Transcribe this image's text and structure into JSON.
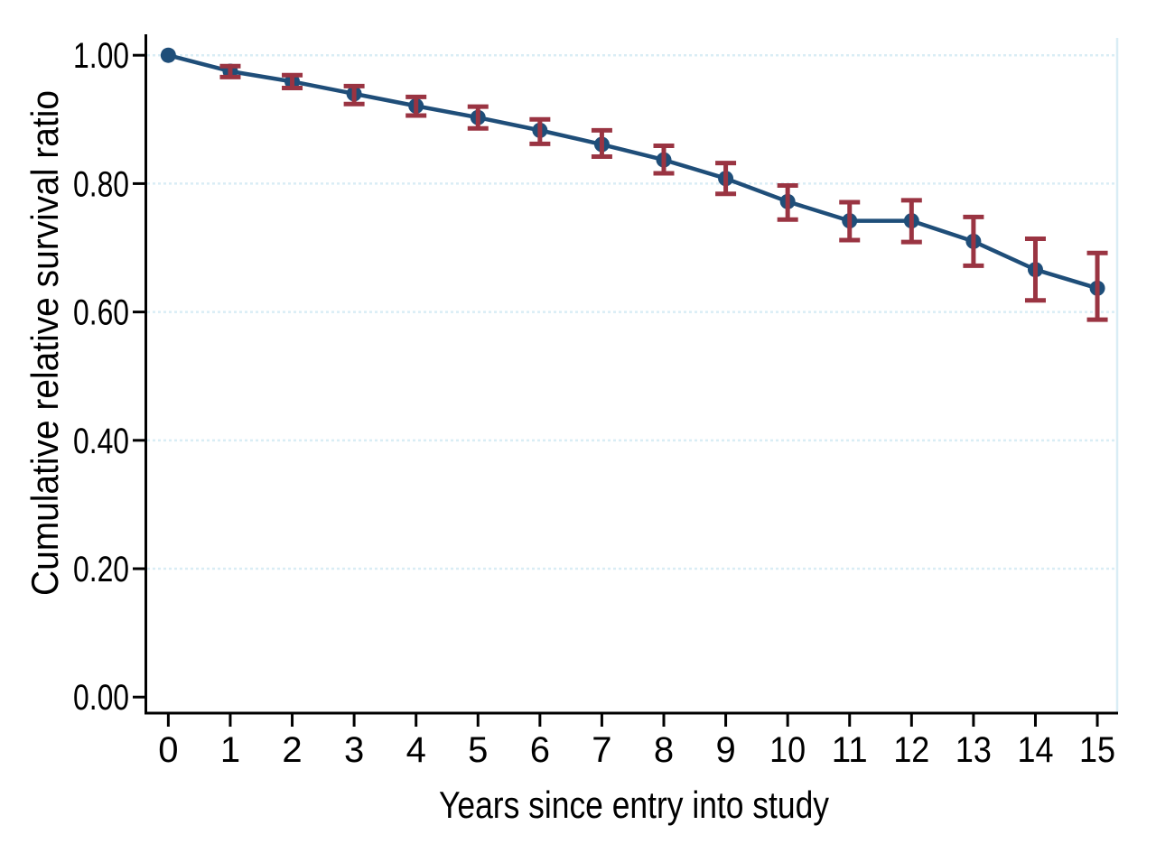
{
  "chart_data": {
    "type": "line",
    "title": "",
    "xlabel": "Years since entry into study",
    "ylabel": "Cumulative relative survival ratio",
    "x": [
      0,
      1,
      2,
      3,
      4,
      5,
      6,
      7,
      8,
      9,
      10,
      11,
      12,
      13,
      14,
      15
    ],
    "series": [
      {
        "name": "cumulative-relative-survival",
        "values": [
          1.0,
          0.975,
          0.959,
          0.94,
          0.921,
          0.903,
          0.883,
          0.861,
          0.837,
          0.808,
          0.772,
          0.742,
          0.742,
          0.71,
          0.666,
          0.637
        ],
        "ci_low": [
          null,
          0.966,
          0.949,
          0.924,
          0.906,
          0.886,
          0.862,
          0.842,
          0.816,
          0.784,
          0.744,
          0.712,
          0.709,
          0.672,
          0.618,
          0.588
        ],
        "ci_high": [
          null,
          0.983,
          0.969,
          0.952,
          0.935,
          0.92,
          0.9,
          0.883,
          0.859,
          0.832,
          0.797,
          0.771,
          0.774,
          0.748,
          0.714,
          0.692
        ]
      }
    ],
    "xticks": [
      "0",
      "1",
      "2",
      "3",
      "4",
      "5",
      "6",
      "7",
      "8",
      "9",
      "10",
      "11",
      "12",
      "13",
      "14",
      "15"
    ],
    "yticks": [
      0.0,
      0.2,
      0.4,
      0.6,
      0.8,
      1.0
    ],
    "ytick_labels": [
      "0.00",
      "0.20",
      "0.40",
      "0.60",
      "0.80",
      "1.00"
    ],
    "xlim": [
      -0.37,
      15.32
    ],
    "ylim": [
      -0.025,
      1.027
    ],
    "grid": {
      "horizontal": true,
      "vertical": false,
      "style": "dotted"
    },
    "legend": "none",
    "colors": {
      "line": "#1f4e79",
      "marker": "#1f4e79",
      "error_bar": "#9a3442",
      "gridline": "#d9edf5",
      "plot_right_border": "#d9edf5",
      "axis": "#000000",
      "background": "#ffffff"
    }
  }
}
